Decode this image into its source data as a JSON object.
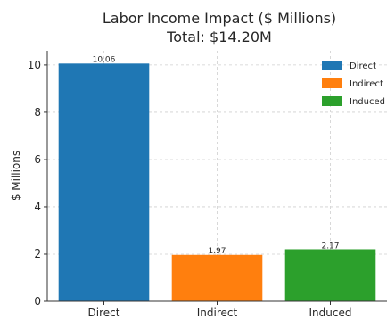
{
  "chart_data": {
    "type": "bar",
    "title": "Labor Income Impact ($ Millions)",
    "subtitle": "Total: $14.20M",
    "xlabel": "",
    "ylabel": "$ Millions",
    "categories": [
      "Direct",
      "Indirect",
      "Induced"
    ],
    "values": [
      10.06,
      1.97,
      2.17
    ],
    "value_labels": [
      "10.06",
      "1.97",
      "2.17"
    ],
    "colors": [
      "#1f77b4",
      "#ff7f0e",
      "#2ca02c"
    ],
    "ylim": [
      0,
      10.6
    ],
    "yticks": [
      0,
      2,
      4,
      6,
      8,
      10
    ],
    "grid": true,
    "legend": {
      "placement": "top-right",
      "entries": [
        "Direct",
        "Indirect",
        "Induced"
      ]
    }
  }
}
